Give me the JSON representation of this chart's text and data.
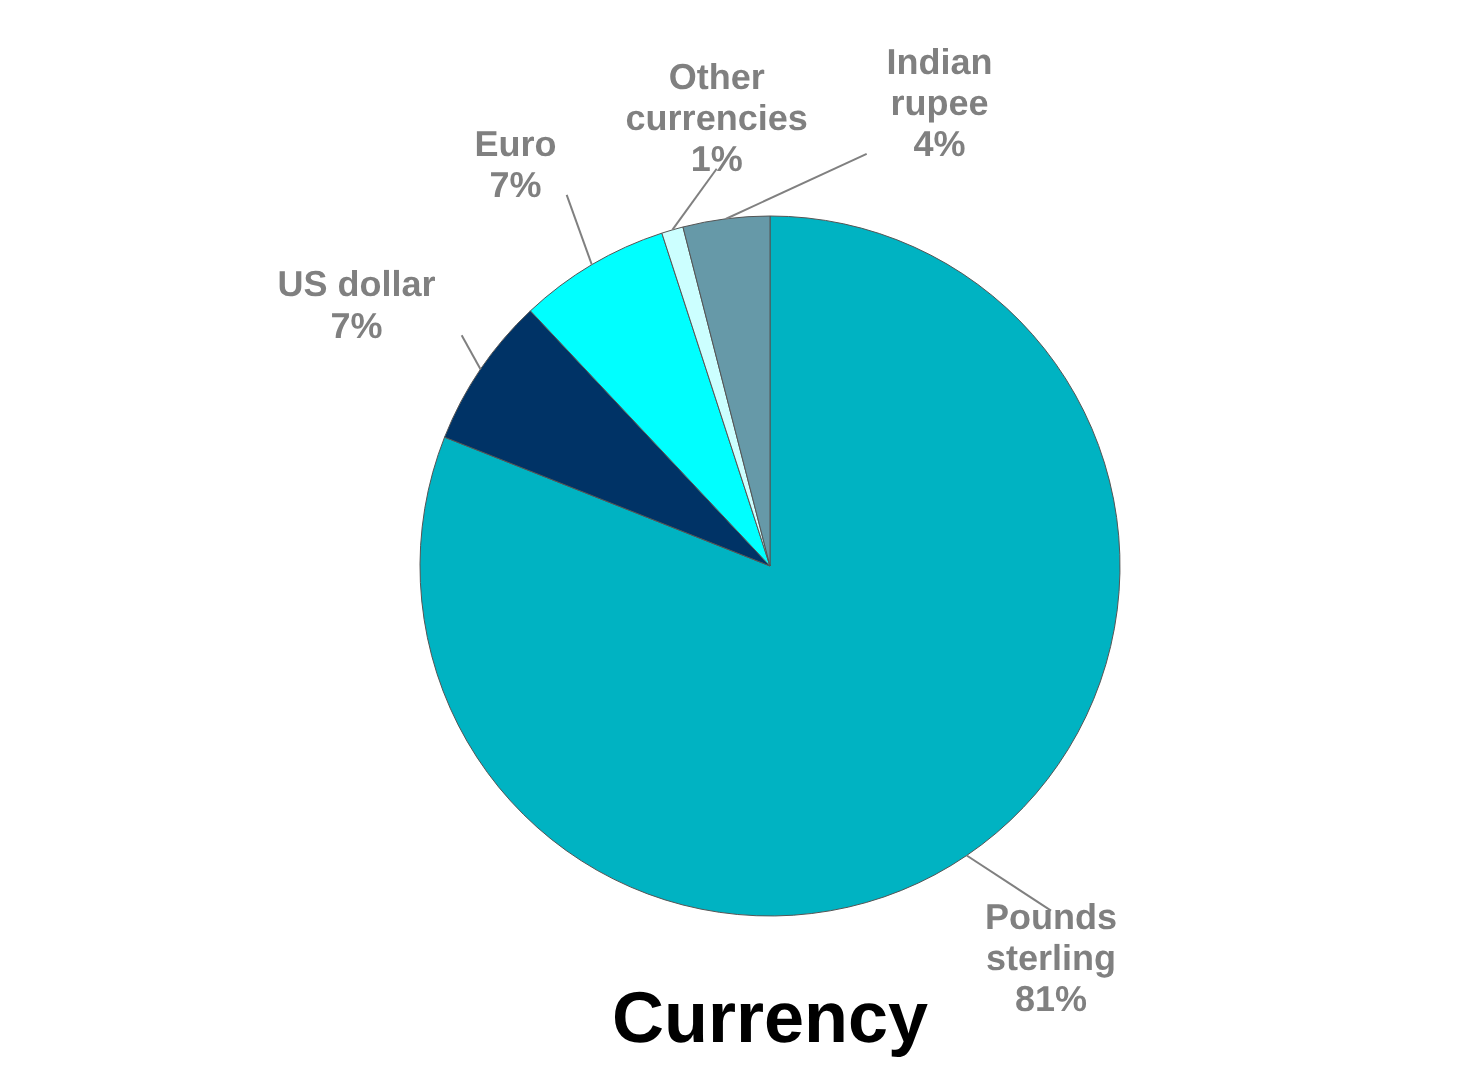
{
  "chart_data": {
    "type": "pie",
    "title": "Currency",
    "categories": [
      "Pounds sterling",
      "US dollar",
      "Euro",
      "Other currencies",
      "Indian rupee"
    ],
    "values": [
      81,
      7,
      7,
      1,
      4
    ],
    "value_labels": [
      "81%",
      "7%",
      "7%",
      "1%",
      "4%"
    ],
    "colors": [
      "#00b3c2",
      "#003366",
      "#00ffff",
      "#ccffff",
      "#6699a8"
    ],
    "legend": false
  }
}
